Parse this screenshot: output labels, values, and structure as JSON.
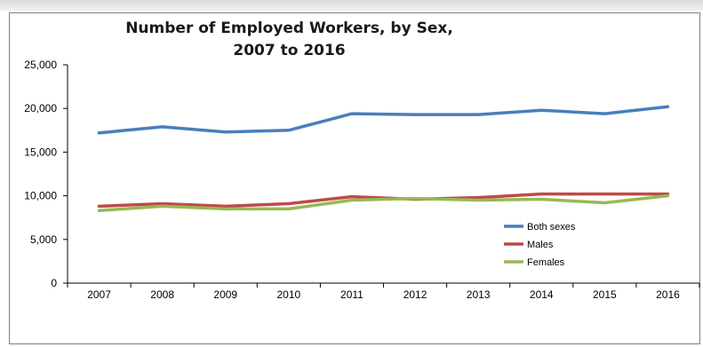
{
  "chart_data": {
    "type": "line",
    "title": [
      "Number of Employed Workers, by Sex,",
      "2007 to 2016"
    ],
    "xlabel": "",
    "ylabel": "",
    "categories": [
      "2007",
      "2008",
      "2009",
      "2010",
      "2011",
      "2012",
      "2013",
      "2014",
      "2015",
      "2016"
    ],
    "ylim": [
      0,
      25000
    ],
    "yticks": [
      0,
      5000,
      10000,
      15000,
      20000,
      25000
    ],
    "ytick_labels": [
      "0",
      "5,000",
      "10,000",
      "15,000",
      "20,000",
      "25,000"
    ],
    "grid": false,
    "legend_position": "right",
    "series": [
      {
        "name": "Both sexes",
        "color": "#4a7ebb",
        "values": [
          17200,
          17900,
          17300,
          17500,
          19400,
          19300,
          19300,
          19800,
          19400,
          20200
        ]
      },
      {
        "name": "Males",
        "color": "#be4b48",
        "values": [
          8800,
          9100,
          8800,
          9100,
          9900,
          9600,
          9800,
          10200,
          10200,
          10200
        ]
      },
      {
        "name": "Females",
        "color": "#98b954",
        "values": [
          8300,
          8800,
          8500,
          8500,
          9500,
          9700,
          9500,
          9600,
          9200,
          10000
        ]
      }
    ]
  }
}
